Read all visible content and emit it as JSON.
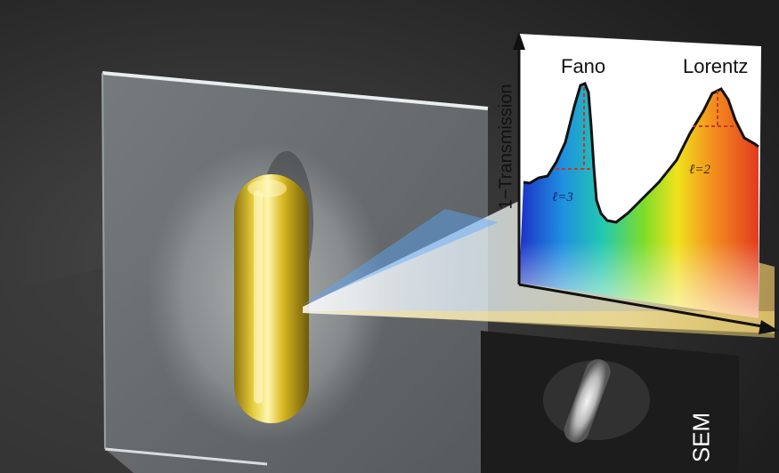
{
  "spectrum_plot": {
    "y_axis_label": "1−Transmission",
    "peaks": [
      {
        "name": "Fano",
        "mode_label": "ℓ=3"
      },
      {
        "name": "Lorentz",
        "mode_label": "ℓ=2"
      }
    ]
  },
  "inset": {
    "label": "SEM"
  },
  "colors": {
    "background": "#2b2b2b",
    "nanorod_gold": "#d9b820",
    "peak_marker": "#c0392b"
  }
}
